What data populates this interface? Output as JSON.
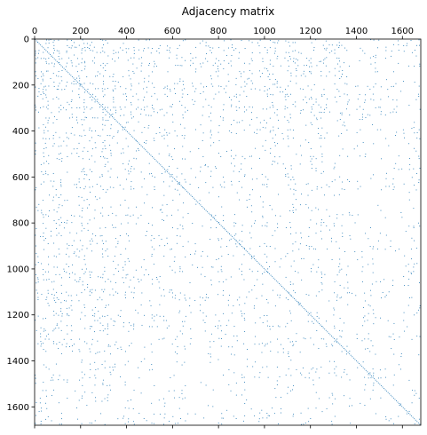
{
  "chart_data": {
    "type": "heatmap",
    "title": "Adjacency matrix",
    "xlabel": "",
    "ylabel": "",
    "xlim": [
      0,
      1680
    ],
    "ylim": [
      1680,
      0
    ],
    "xticks": [
      0,
      200,
      400,
      600,
      800,
      1000,
      1200,
      1400,
      1600
    ],
    "yticks": [
      0,
      200,
      400,
      600,
      800,
      1000,
      1200,
      1400,
      1600
    ],
    "x_tick_position": "top",
    "grid": false,
    "marker_color": "#1f77b4",
    "matrix_size": 1680,
    "structure": {
      "dense_region": [
        0,
        400
      ],
      "density_dense": 0.3,
      "density_mid": 0.14,
      "density_sparse": 0.08,
      "diagonal": true
    }
  }
}
